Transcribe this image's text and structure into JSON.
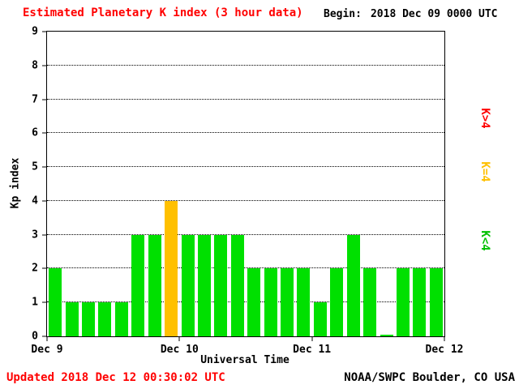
{
  "header": {
    "title": "Estimated Planetary K index (3 hour data)",
    "begin_label": "Begin:",
    "begin_value": "2018 Dec 09 0000 UTC"
  },
  "chart_data": {
    "type": "bar",
    "title": "Estimated Planetary K index (3 hour data)",
    "begin": "2018 Dec 09 0000 UTC",
    "interval_hours": 3,
    "xlabel": "Universal Time",
    "ylabel": "Kp index",
    "ylim": [
      0,
      9
    ],
    "yticks": [
      0,
      1,
      2,
      3,
      4,
      5,
      6,
      7,
      8,
      9
    ],
    "x_day_labels": [
      "Dec 9",
      "Dec 10",
      "Dec 11",
      "Dec 12"
    ],
    "values": [
      2,
      1,
      1,
      1,
      1,
      3,
      3,
      4,
      3,
      3,
      3,
      3,
      2,
      2,
      2,
      2,
      1,
      2,
      3,
      2,
      0,
      2,
      2,
      2
    ],
    "colors": {
      "k_lt_4": "#00E000",
      "k_eq_4": "#FFC000",
      "k_gt_4": "#FF0000"
    },
    "grid": "dotted-horizontal",
    "legend_position": "right",
    "legend": [
      {
        "label": "K>4",
        "color": "#FF0000"
      },
      {
        "label": "K=4",
        "color": "#FFC000"
      },
      {
        "label": "K<4",
        "color": "#00C000"
      }
    ]
  },
  "footer": {
    "updated": "Updated 2018 Dec 12 00:30:02 UTC",
    "credit": "NOAA/SWPC Boulder, CO USA"
  }
}
